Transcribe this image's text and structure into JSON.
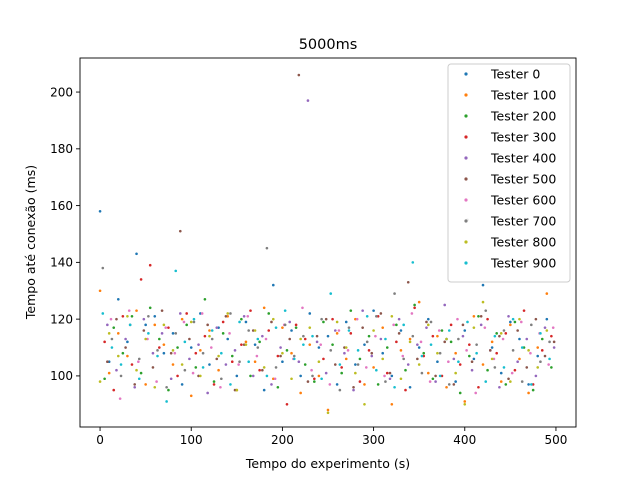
{
  "chart_data": {
    "type": "scatter",
    "title": "5000ms",
    "xlabel": "Tempo do experimento (s)",
    "ylabel": "Tempo até conexão (ms)",
    "xlim": [
      -22,
      522
    ],
    "ylim": [
      82,
      212
    ],
    "xticks": [
      0,
      100,
      200,
      300,
      400,
      500
    ],
    "yticks": [
      100,
      120,
      140,
      160,
      180,
      200
    ],
    "grid": false,
    "legend_position": "top-right",
    "series": [
      {
        "name": "Tester 0",
        "color": "#1f77b4",
        "x": [
          0,
          10,
          20,
          30,
          40,
          50,
          60,
          70,
          80,
          90,
          100,
          110,
          120,
          130,
          140,
          150,
          160,
          170,
          180,
          190,
          200,
          210,
          220,
          230,
          240,
          250,
          260,
          270,
          280,
          290,
          300,
          310,
          320,
          330,
          340,
          350,
          360,
          370,
          380,
          390,
          400,
          410,
          420,
          430,
          440,
          450,
          460,
          470,
          480,
          490
        ],
        "y": [
          158,
          105,
          127,
          112,
          143,
          118,
          121,
          108,
          115,
          97,
          110,
          122,
          104,
          117,
          113,
          100,
          119,
          111,
          95,
          132,
          105,
          116,
          100,
          122,
          110,
          114,
          97,
          119,
          104,
          111,
          123,
          108,
          100,
          116,
          96,
          110,
          120,
          105,
          113,
          98,
          116,
          106,
          132,
          110,
          101,
          119,
          113,
          97,
          107,
          120
        ]
      },
      {
        "name": "Tester 100",
        "color": "#ff7f0e",
        "x": [
          0,
          10,
          20,
          30,
          40,
          50,
          60,
          70,
          80,
          90,
          100,
          110,
          120,
          130,
          140,
          150,
          160,
          170,
          180,
          190,
          200,
          210,
          220,
          230,
          240,
          250,
          260,
          270,
          280,
          290,
          300,
          310,
          320,
          330,
          340,
          350,
          360,
          370,
          380,
          390,
          400,
          410,
          420,
          430,
          440,
          450,
          460,
          470,
          480,
          490
        ],
        "y": [
          130,
          101,
          115,
          107,
          123,
          97,
          118,
          111,
          104,
          120,
          93,
          109,
          116,
          102,
          121,
          95,
          112,
          105,
          124,
          99,
          117,
          108,
          94,
          111,
          100,
          88,
          115,
          106,
          120,
          97,
          103,
          117,
          90,
          109,
          113,
          126,
          101,
          114,
          96,
          108,
          91,
          121,
          104,
          112,
          98,
          118,
          106,
          94,
          110,
          129
        ]
      },
      {
        "name": "Tester 200",
        "color": "#2ca02c",
        "x": [
          5,
          15,
          25,
          35,
          45,
          55,
          65,
          75,
          85,
          95,
          105,
          115,
          125,
          135,
          145,
          155,
          165,
          175,
          185,
          195,
          205,
          215,
          225,
          235,
          245,
          255,
          265,
          275,
          285,
          295,
          305,
          315,
          325,
          335,
          345,
          355,
          365,
          375,
          385,
          395,
          405,
          415,
          425,
          435,
          445,
          455,
          465,
          475,
          485,
          495
        ],
        "y": [
          99,
          117,
          108,
          121,
          101,
          124,
          113,
          95,
          110,
          118,
          103,
          127,
          98,
          115,
          107,
          120,
          100,
          112,
          122,
          96,
          109,
          117,
          104,
          98,
          119,
          111,
          101,
          123,
          106,
          114,
          97,
          110,
          118,
          102,
          125,
          108,
          99,
          116,
          112,
          94,
          107,
          121,
          102,
          115,
          97,
          119,
          110,
          95,
          113,
          103
        ]
      },
      {
        "name": "Tester 300",
        "color": "#d62728",
        "x": [
          5,
          15,
          25,
          35,
          45,
          55,
          65,
          75,
          85,
          95,
          105,
          115,
          125,
          135,
          145,
          155,
          165,
          175,
          185,
          195,
          205,
          215,
          225,
          235,
          245,
          255,
          265,
          275,
          285,
          295,
          305,
          315,
          325,
          335,
          345,
          355,
          365,
          375,
          385,
          395,
          405,
          415,
          425,
          435,
          445,
          455,
          465,
          475,
          485,
          495
        ],
        "y": [
          112,
          95,
          121,
          104,
          134,
          139,
          110,
          117,
          100,
          122,
          108,
          114,
          97,
          119,
          105,
          111,
          123,
          102,
          116,
          107,
          90,
          118,
          113,
          99,
          106,
          120,
          103,
          115,
          98,
          109,
          121,
          101,
          112,
          95,
          124,
          107,
          114,
          100,
          118,
          104,
          111,
          96,
          120,
          108,
          115,
          102,
          123,
          97,
          109,
          114
        ]
      },
      {
        "name": "Tester 400",
        "color": "#9467bd",
        "x": [
          8,
          18,
          28,
          38,
          48,
          58,
          68,
          78,
          88,
          98,
          108,
          118,
          128,
          138,
          148,
          158,
          168,
          178,
          188,
          198,
          208,
          218,
          228,
          238,
          248,
          258,
          268,
          278,
          288,
          298,
          308,
          318,
          328,
          338,
          348,
          358,
          368,
          378,
          388,
          398,
          408,
          418,
          428,
          438,
          448,
          458,
          468,
          478,
          488,
          498
        ],
        "y": [
          118,
          102,
          113,
          96,
          120,
          108,
          115,
          99,
          122,
          106,
          111,
          94,
          117,
          104,
          109,
          121,
          100,
          114,
          97,
          110,
          119,
          105,
          197,
          112,
          101,
          116,
          108,
          95,
          123,
          107,
          113,
          99,
          120,
          104,
          111,
          117,
          98,
          125,
          106,
          114,
          102,
          118,
          109,
          96,
          121,
          105,
          113,
          100,
          117,
          110
        ]
      },
      {
        "name": "Tester 500",
        "color": "#8c564b",
        "x": [
          8,
          18,
          28,
          38,
          48,
          58,
          68,
          78,
          88,
          98,
          108,
          118,
          128,
          138,
          148,
          158,
          168,
          178,
          188,
          198,
          208,
          218,
          228,
          238,
          248,
          258,
          268,
          278,
          288,
          298,
          308,
          318,
          328,
          338,
          348,
          358,
          368,
          378,
          388,
          398,
          408,
          418,
          428,
          438,
          448,
          458,
          468,
          478,
          488,
          498
        ],
        "y": [
          105,
          120,
          110,
          97,
          116,
          103,
          123,
          108,
          151,
          113,
          100,
          118,
          106,
          121,
          95,
          111,
          116,
          102,
          119,
          107,
          113,
          206,
          98,
          114,
          120,
          104,
          110,
          96,
          117,
          108,
          122,
          101,
          115,
          133,
          106,
          119,
          100,
          112,
          97,
          118,
          105,
          121,
          109,
          114,
          99,
          116,
          103,
          120,
          107,
          112
        ]
      },
      {
        "name": "Tester 600",
        "color": "#e377c2",
        "x": [
          12,
          22,
          32,
          42,
          52,
          62,
          72,
          82,
          92,
          102,
          112,
          122,
          132,
          142,
          152,
          162,
          172,
          182,
          192,
          202,
          212,
          222,
          232,
          242,
          252,
          262,
          272,
          282,
          292,
          302,
          312,
          322,
          332,
          342,
          352,
          362,
          372,
          382,
          392,
          402,
          412,
          422,
          432,
          442,
          452,
          462,
          472,
          482,
          492,
          497
        ],
        "y": [
          120,
          92,
          123,
          105,
          113,
          98,
          117,
          108,
          119,
          101,
          122,
          110,
          96,
          115,
          104,
          121,
          107,
          113,
          99,
          118,
          106,
          124,
          102,
          111,
          97,
          116,
          109,
          120,
          103,
          114,
          100,
          118,
          107,
          122,
          112,
          98,
          116,
          105,
          120,
          109,
          94,
          117,
          106,
          113,
          101,
          119,
          108,
          115,
          104,
          117
        ]
      },
      {
        "name": "Tester 700",
        "color": "#7f7f7f",
        "x": [
          3,
          13,
          23,
          33,
          43,
          53,
          63,
          73,
          83,
          93,
          103,
          113,
          123,
          133,
          143,
          153,
          163,
          173,
          183,
          193,
          203,
          213,
          223,
          233,
          243,
          253,
          263,
          273,
          283,
          293,
          303,
          313,
          323,
          333,
          343,
          353,
          363,
          373,
          383,
          393,
          403,
          413,
          423,
          433,
          443,
          453,
          463,
          473,
          483,
          493
        ],
        "y": [
          138,
          113,
          100,
          118,
          106,
          121,
          109,
          96,
          115,
          102,
          119,
          108,
          113,
          99,
          122,
          105,
          116,
          110,
          145,
          103,
          118,
          107,
          114,
          100,
          120,
          109,
          95,
          117,
          104,
          112,
          121,
          98,
          129,
          106,
          114,
          101,
          119,
          108,
          97,
          113,
          155,
          111,
          123,
          103,
          116,
          109,
          98,
          118,
          105,
          112
        ]
      },
      {
        "name": "Tester 800",
        "color": "#bcbd22",
        "x": [
          0,
          10,
          20,
          30,
          40,
          50,
          60,
          70,
          80,
          90,
          100,
          110,
          120,
          130,
          140,
          150,
          160,
          170,
          180,
          190,
          200,
          210,
          220,
          230,
          240,
          250,
          260,
          270,
          280,
          290,
          300,
          310,
          320,
          330,
          340,
          350,
          360,
          370,
          380,
          390,
          400,
          410,
          420,
          430,
          440,
          450,
          460,
          470,
          480,
          490
        ],
        "y": [
          98,
          115,
          107,
          121,
          102,
          113,
          96,
          118,
          109,
          104,
          119,
          100,
          114,
          107,
          122,
          95,
          111,
          116,
          103,
          120,
          108,
          99,
          113,
          117,
          105,
          87,
          119,
          110,
          101,
          90,
          116,
          106,
          121,
          99,
          112,
          104,
          118,
          108,
          113,
          101,
          90,
          117,
          126,
          106,
          115,
          98,
          120,
          109,
          103,
          116
        ]
      },
      {
        "name": "Tester 900",
        "color": "#17becf",
        "x": [
          3,
          13,
          23,
          33,
          43,
          53,
          63,
          73,
          83,
          93,
          103,
          113,
          123,
          133,
          143,
          153,
          163,
          173,
          183,
          193,
          203,
          213,
          223,
          233,
          243,
          253,
          263,
          273,
          283,
          293,
          303,
          313,
          323,
          333,
          343,
          353,
          363,
          373,
          383,
          393,
          403,
          413,
          423,
          433,
          443,
          453,
          463,
          473,
          483,
          493
        ],
        "y": [
          122,
          110,
          104,
          118,
          99,
          115,
          107,
          91,
          137,
          112,
          120,
          103,
          116,
          108,
          97,
          119,
          105,
          113,
          100,
          117,
          123,
          106,
          111,
          114,
          99,
          129,
          104,
          116,
          109,
          121,
          102,
          113,
          96,
          118,
          140,
          107,
          111,
          100,
          116,
          105,
          119,
          108,
          98,
          114,
          103,
          120,
          110,
          97,
          115,
          106
        ]
      }
    ]
  }
}
